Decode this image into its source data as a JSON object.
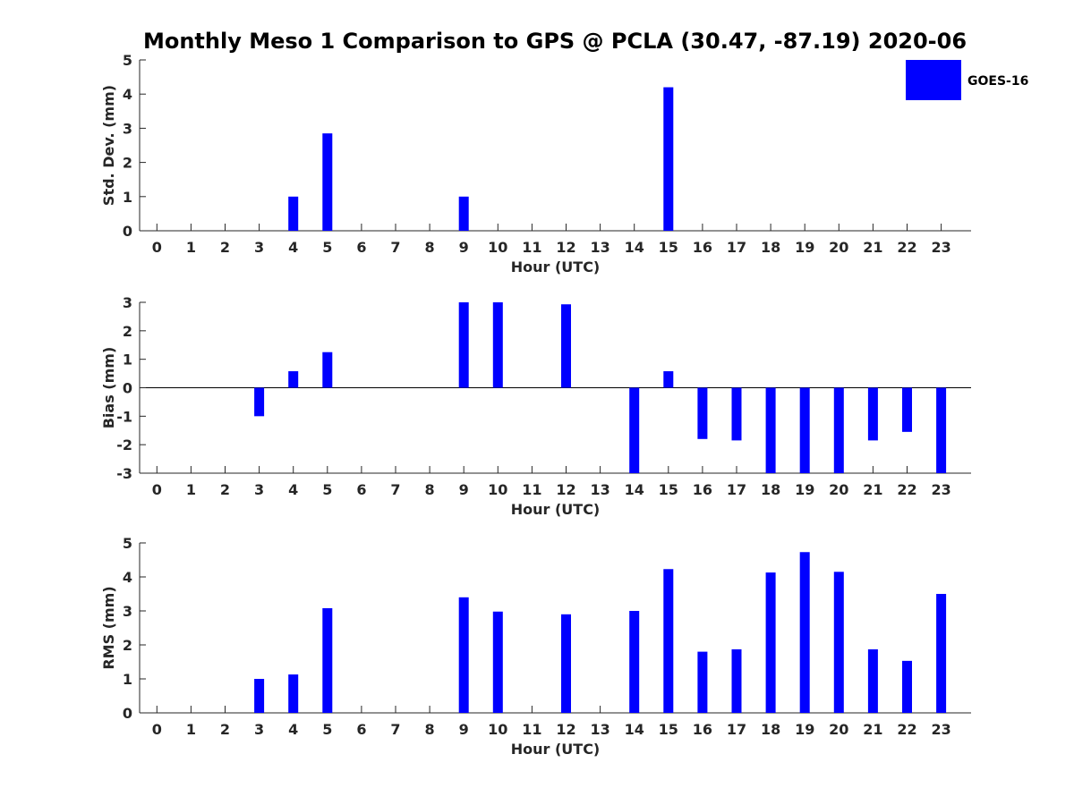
{
  "title": "Monthly Meso 1 Comparison to GPS @ PCLA (30.47, -87.19) 2020-06",
  "legend": {
    "label": "GOES-16",
    "color": "#0000ff",
    "placement": "top-right"
  },
  "chart_data": [
    {
      "type": "bar",
      "xlabel": "Hour (UTC)",
      "ylabel": "Std. Dev. (mm)",
      "categories": [
        0,
        1,
        2,
        3,
        4,
        5,
        6,
        7,
        8,
        9,
        10,
        11,
        12,
        13,
        14,
        15,
        16,
        17,
        18,
        19,
        20,
        21,
        22,
        23
      ],
      "series": [
        {
          "name": "GOES-16",
          "values": [
            0,
            0,
            0,
            0,
            1.0,
            2.85,
            0,
            0,
            0,
            1.0,
            0,
            0,
            0,
            0,
            0,
            4.2,
            0,
            0,
            0,
            0,
            0,
            0,
            0,
            0
          ]
        }
      ],
      "ylim": [
        0,
        5
      ],
      "yticks": [
        0,
        1,
        2,
        3,
        4,
        5
      ],
      "grid": false
    },
    {
      "type": "bar",
      "xlabel": "Hour (UTC)",
      "ylabel": "Bias (mm)",
      "categories": [
        0,
        1,
        2,
        3,
        4,
        5,
        6,
        7,
        8,
        9,
        10,
        11,
        12,
        13,
        14,
        15,
        16,
        17,
        18,
        19,
        20,
        21,
        22,
        23
      ],
      "series": [
        {
          "name": "GOES-16",
          "values": [
            0,
            0,
            0,
            -1.0,
            0.58,
            1.25,
            0,
            0,
            0,
            3.0,
            3.0,
            0,
            2.93,
            0,
            -3.0,
            0.58,
            -1.8,
            -1.85,
            -3.0,
            -3.0,
            -3.0,
            -1.85,
            -1.55,
            -3.0
          ]
        }
      ],
      "ylim": [
        -3,
        3
      ],
      "yticks": [
        -3,
        -2,
        -1,
        0,
        1,
        2,
        3
      ],
      "grid": false
    },
    {
      "type": "bar",
      "xlabel": "Hour (UTC)",
      "ylabel": "RMS (mm)",
      "categories": [
        0,
        1,
        2,
        3,
        4,
        5,
        6,
        7,
        8,
        9,
        10,
        11,
        12,
        13,
        14,
        15,
        16,
        17,
        18,
        19,
        20,
        21,
        22,
        23
      ],
      "series": [
        {
          "name": "GOES-16",
          "values": [
            0,
            0,
            0,
            1.0,
            1.13,
            3.08,
            0,
            0,
            0,
            3.4,
            2.98,
            0,
            2.9,
            0,
            3.0,
            4.23,
            1.8,
            1.87,
            4.13,
            4.73,
            4.15,
            1.87,
            1.53,
            3.5
          ]
        }
      ],
      "ylim": [
        0,
        5
      ],
      "yticks": [
        0,
        1,
        2,
        3,
        4,
        5
      ],
      "grid": false
    }
  ]
}
